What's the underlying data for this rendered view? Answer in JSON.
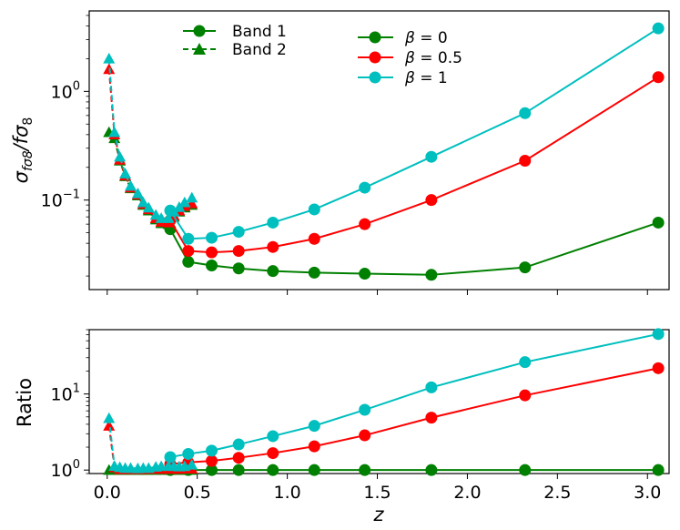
{
  "chart_data": [
    {
      "type": "line",
      "panel": "top",
      "ylabel_main": "σ",
      "ylabel_sub": "fσ8",
      "ylabel_tail": "/fσ",
      "ylabel_tail_sub": "8",
      "yscale": "log",
      "ylim": [
        0.015,
        5.5
      ],
      "xlim": [
        -0.1,
        3.12
      ],
      "y_ticks": [
        {
          "value": 1,
          "base": "10",
          "exp": "0"
        },
        {
          "value": 0.1,
          "base": "10",
          "exp": "−1"
        }
      ],
      "legend_band": [
        {
          "label": "Band 1",
          "marker": "circle",
          "linestyle": "solid",
          "color": "#008000"
        },
        {
          "label": "Band 2",
          "marker": "triangle",
          "linestyle": "dashed",
          "color": "#008000"
        }
      ],
      "legend_beta": [
        {
          "label_prefix": "β = ",
          "label_value": "0",
          "color": "#008000"
        },
        {
          "label_prefix": "β = ",
          "label_value": "0.5",
          "color": "#ff0000"
        },
        {
          "label_prefix": "β = ",
          "label_value": "1",
          "color": "#00bfbf"
        }
      ],
      "band1_x": [
        0.35,
        0.45,
        0.58,
        0.73,
        0.92,
        1.15,
        1.43,
        1.8,
        2.32,
        3.06
      ],
      "band2_x": [
        0.01,
        0.04,
        0.07,
        0.1,
        0.13,
        0.17,
        0.2,
        0.23,
        0.27,
        0.3,
        0.34,
        0.37,
        0.4,
        0.43,
        0.47
      ],
      "series": [
        {
          "name": "β = 0",
          "color": "#008000",
          "band1": [
            0.054,
            0.027,
            0.025,
            0.0235,
            0.0222,
            0.0215,
            0.021,
            0.0205,
            0.024,
            0.062
          ],
          "band2": [
            0.42,
            0.37,
            0.23,
            0.165,
            0.128,
            0.11,
            0.09,
            0.08,
            0.066,
            0.061,
            0.06,
            0.07,
            0.078,
            0.085,
            0.09
          ]
        },
        {
          "name": "β = 0.5",
          "color": "#ff0000",
          "band1": [
            0.065,
            0.034,
            0.033,
            0.034,
            0.037,
            0.044,
            0.06,
            0.1,
            0.23,
            1.35
          ],
          "band2": [
            1.6,
            0.4,
            0.235,
            0.168,
            0.13,
            0.112,
            0.092,
            0.082,
            0.068,
            0.063,
            0.062,
            0.072,
            0.08,
            0.088,
            0.093
          ]
        },
        {
          "name": "β = 1",
          "color": "#00bfbf",
          "band1": [
            0.08,
            0.044,
            0.045,
            0.051,
            0.062,
            0.082,
            0.13,
            0.25,
            0.63,
            3.8
          ],
          "band2": [
            2.0,
            0.42,
            0.25,
            0.175,
            0.135,
            0.115,
            0.095,
            0.085,
            0.073,
            0.068,
            0.068,
            0.078,
            0.086,
            0.095,
            0.105
          ]
        }
      ]
    },
    {
      "type": "line",
      "panel": "bottom",
      "ylabel": "Ratio",
      "xlabel": "z",
      "yscale": "log",
      "ylim": [
        0.9,
        70
      ],
      "xlim": [
        -0.1,
        3.12
      ],
      "x_ticks": [
        "0.0",
        "0.5",
        "1.0",
        "1.5",
        "2.0",
        "2.5",
        "3.0"
      ],
      "x_tick_values": [
        0.0,
        0.5,
        1.0,
        1.5,
        2.0,
        2.5,
        3.0
      ],
      "y_ticks": [
        {
          "value": 1,
          "base": "10",
          "exp": "0"
        },
        {
          "value": 10,
          "base": "10",
          "exp": "1"
        }
      ],
      "band1_x": [
        0.35,
        0.45,
        0.58,
        0.73,
        0.92,
        1.15,
        1.43,
        1.8,
        2.32,
        3.06
      ],
      "band2_x": [
        0.01,
        0.04,
        0.07,
        0.1,
        0.13,
        0.17,
        0.2,
        0.23,
        0.27,
        0.3,
        0.34,
        0.37,
        0.4,
        0.43,
        0.47
      ],
      "series": [
        {
          "name": "β = 0",
          "color": "#008000",
          "band1": [
            1.0,
            1.0,
            1.0,
            1.0,
            1.0,
            1.0,
            1.0,
            1.0,
            1.0,
            1.0
          ],
          "band2": [
            1.0,
            1.0,
            1.0,
            1.0,
            1.0,
            1.0,
            1.0,
            1.0,
            1.0,
            1.0,
            1.0,
            1.0,
            1.0,
            1.0,
            1.0
          ]
        },
        {
          "name": "β = 0.5",
          "color": "#ff0000",
          "band1": [
            1.2,
            1.26,
            1.32,
            1.45,
            1.67,
            2.05,
            2.86,
            4.88,
            9.58,
            21.8
          ],
          "band2": [
            3.8,
            1.08,
            1.02,
            1.02,
            1.02,
            1.02,
            1.02,
            1.03,
            1.03,
            1.03,
            1.03,
            1.03,
            1.03,
            1.04,
            1.04
          ]
        },
        {
          "name": "β = 1",
          "color": "#00bfbf",
          "band1": [
            1.48,
            1.63,
            1.8,
            2.17,
            2.79,
            3.81,
            6.19,
            12.2,
            26.2,
            61.3
          ],
          "band2": [
            4.8,
            1.13,
            1.09,
            1.06,
            1.06,
            1.05,
            1.06,
            1.06,
            1.1,
            1.12,
            1.13,
            1.12,
            1.11,
            1.12,
            1.17
          ]
        }
      ]
    }
  ]
}
